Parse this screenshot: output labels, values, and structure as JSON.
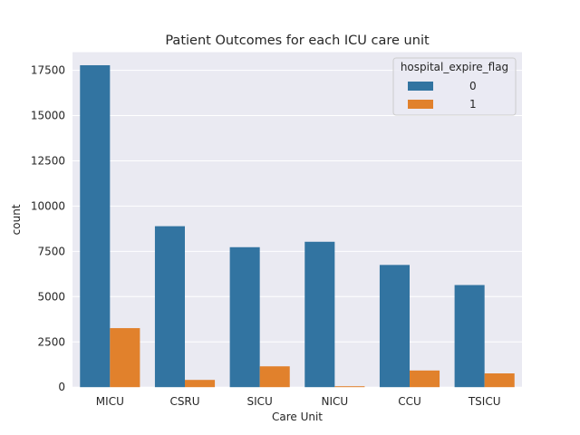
{
  "chart_data": {
    "type": "bar",
    "title": "Patient Outcomes for each ICU care unit",
    "xlabel": "Care Unit",
    "ylabel": "count",
    "categories": [
      "MICU",
      "CSRU",
      "SICU",
      "NICU",
      "CCU",
      "TSICU"
    ],
    "series": [
      {
        "name": "0",
        "color": "#3274a1",
        "values": [
          17780,
          8890,
          7730,
          8030,
          6750,
          5640
        ]
      },
      {
        "name": "1",
        "color": "#e1812c",
        "values": [
          3260,
          400,
          1150,
          50,
          920,
          760
        ]
      }
    ],
    "legend_title": "hospital_expire_flag",
    "legend_position": "top-right",
    "ylim": [
      0,
      18500
    ],
    "yticks": [
      0,
      2500,
      5000,
      7500,
      10000,
      12500,
      15000,
      17500
    ],
    "grid": true,
    "background": "#eaeaf2"
  }
}
